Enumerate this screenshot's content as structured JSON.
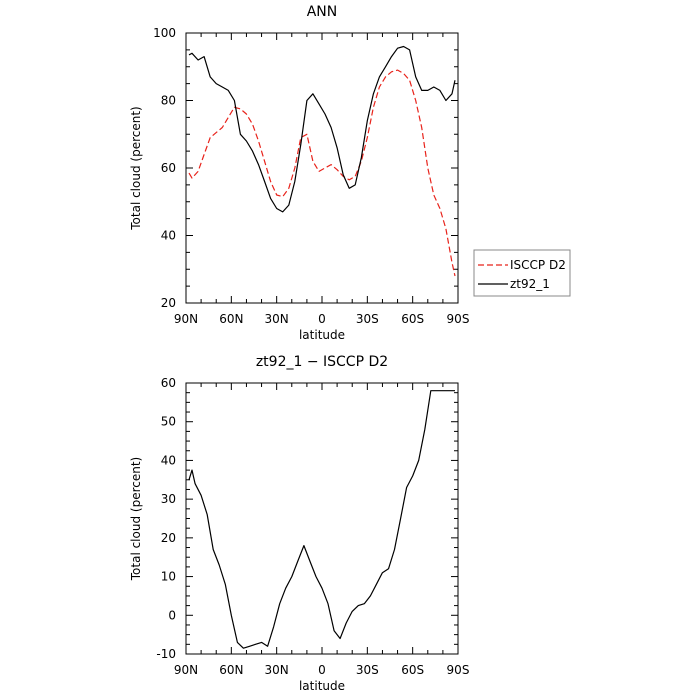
{
  "chart_data": [
    {
      "type": "line",
      "title": "ANN",
      "xlabel": "latitude",
      "ylabel": "Total cloud (percent)",
      "xlim": [
        90,
        -90
      ],
      "ylim": [
        20,
        100
      ],
      "xticks": [
        {
          "value": 90,
          "label": "90N"
        },
        {
          "value": 60,
          "label": "60N"
        },
        {
          "value": 30,
          "label": "30N"
        },
        {
          "value": 0,
          "label": "0"
        },
        {
          "value": -30,
          "label": "30S"
        },
        {
          "value": -60,
          "label": "60S"
        },
        {
          "value": -90,
          "label": "90S"
        }
      ],
      "yticks": [
        20,
        40,
        60,
        80,
        100
      ],
      "legend_position": "right",
      "series": [
        {
          "name": "ISCCP D2",
          "color": "#e8231b",
          "dash": "dashed",
          "x": [
            88,
            86,
            82,
            78,
            74,
            70,
            66,
            62,
            58,
            54,
            50,
            46,
            42,
            38,
            34,
            30,
            26,
            22,
            18,
            14,
            10,
            6,
            2,
            -2,
            -6,
            -10,
            -14,
            -18,
            -22,
            -26,
            -30,
            -34,
            -38,
            -42,
            -46,
            -50,
            -54,
            -58,
            -62,
            -66,
            -70,
            -74,
            -78,
            -82,
            -86,
            -88
          ],
          "y": [
            58.5,
            57,
            59,
            64,
            69,
            70.5,
            72,
            75,
            78,
            77.5,
            76,
            73,
            68,
            62,
            56,
            52,
            51.5,
            54,
            60,
            69,
            70,
            62,
            59,
            60,
            61,
            59.5,
            57.5,
            56.5,
            57.5,
            62,
            69,
            78,
            84,
            87,
            88.5,
            89,
            88,
            86,
            80,
            72,
            60,
            52,
            48,
            42,
            32,
            28
          ]
        },
        {
          "name": "zt92_1",
          "color": "#000000",
          "dash": "solid",
          "x": [
            88,
            86,
            82,
            78,
            74,
            70,
            66,
            62,
            58,
            54,
            50,
            46,
            42,
            38,
            34,
            30,
            26,
            22,
            18,
            14,
            10,
            6,
            2,
            -2,
            -6,
            -10,
            -14,
            -18,
            -22,
            -26,
            -30,
            -34,
            -38,
            -42,
            -46,
            -50,
            -54,
            -58,
            -62,
            -66,
            -70,
            -74,
            -78,
            -82,
            -86,
            -88
          ],
          "y": [
            93.5,
            94,
            92,
            93,
            87,
            85,
            84,
            83,
            80,
            70,
            68,
            65,
            61,
            56,
            51,
            48,
            47,
            49,
            56,
            67,
            80,
            82,
            79,
            76,
            72,
            66,
            58,
            54,
            55,
            63,
            74,
            82,
            87,
            90,
            93,
            95.5,
            96,
            95,
            87,
            83,
            83,
            84,
            83,
            80,
            82,
            86
          ]
        }
      ]
    },
    {
      "type": "line",
      "title": "zt92_1 − ISCCP D2",
      "xlabel": "latitude",
      "ylabel": "Total cloud (percent)",
      "xlim": [
        90,
        -90
      ],
      "ylim": [
        -10,
        60
      ],
      "xticks": [
        {
          "value": 90,
          "label": "90N"
        },
        {
          "value": 60,
          "label": "60N"
        },
        {
          "value": 30,
          "label": "30N"
        },
        {
          "value": 0,
          "label": "0"
        },
        {
          "value": -30,
          "label": "30S"
        },
        {
          "value": -60,
          "label": "60S"
        },
        {
          "value": -90,
          "label": "90S"
        }
      ],
      "yticks": [
        -10,
        0,
        10,
        20,
        30,
        40,
        50,
        60
      ],
      "series": [
        {
          "color": "#000000",
          "dash": "solid",
          "x": [
            88,
            86,
            84,
            80,
            76,
            72,
            68,
            64,
            60,
            56,
            52,
            48,
            44,
            40,
            36,
            32,
            28,
            24,
            20,
            16,
            12,
            8,
            4,
            0,
            -4,
            -8,
            -12,
            -16,
            -20,
            -24,
            -28,
            -32,
            -36,
            -40,
            -44,
            -48,
            -52,
            -56,
            -60,
            -64,
            -68,
            -72,
            -76,
            -80,
            -84,
            -88
          ],
          "y": [
            35,
            37.5,
            34,
            31,
            26,
            17,
            13,
            8,
            0,
            -7,
            -8.5,
            -8,
            -7.5,
            -7,
            -8,
            -3,
            3,
            7,
            10,
            14,
            18,
            14,
            10,
            7,
            3,
            -4,
            -6,
            -2,
            1,
            2.5,
            3,
            5,
            8,
            11,
            12,
            17,
            25,
            33,
            36,
            40,
            48,
            58,
            58,
            58,
            58,
            58
          ]
        }
      ]
    }
  ]
}
